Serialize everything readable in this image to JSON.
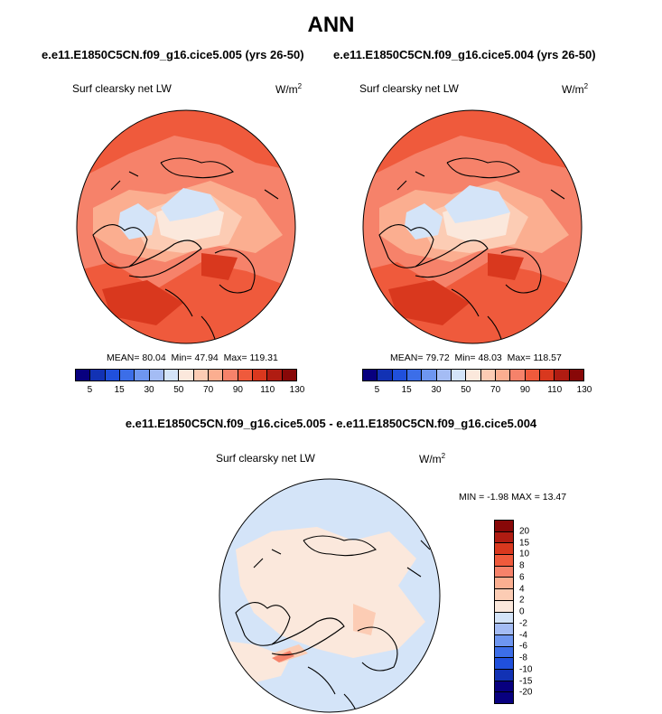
{
  "title": "ANN",
  "case_left": "e.e11.E1850C5CN.f09_g16.cice5.005 (yrs 26-50)",
  "case_right": "e.e11.E1850C5CN.f09_g16.cice5.004 (yrs 26-50)",
  "diff_title": "e.e11.E1850C5CN.f09_g16.cice5.005 - e.e11.E1850C5CN.f09_g16.cice5.004",
  "chart_data": [
    {
      "type": "heatmap",
      "projection": "north polar stereographic",
      "variable": "Surf clearsky net LW",
      "units_base": "W/m",
      "units_exp": "2",
      "case": "e.e11.E1850C5CN.f09_g16.cice5.005 (yrs 26-50)",
      "mean_text": "MEAN=  80.04",
      "min_text": "Min=  47.94",
      "max_text": "Max= 119.31",
      "mean": 80.04,
      "min": 47.94,
      "max": 119.31,
      "colorbar_ticks": [
        "5",
        "15",
        "30",
        "50",
        "70",
        "90",
        "110",
        "130"
      ],
      "contour_levels": [
        5,
        10,
        15,
        20,
        30,
        40,
        50,
        60,
        70,
        80,
        90,
        100,
        110,
        120,
        130
      ]
    },
    {
      "type": "heatmap",
      "projection": "north polar stereographic",
      "variable": "Surf clearsky net LW",
      "units_base": "W/m",
      "units_exp": "2",
      "case": "e.e11.E1850C5CN.f09_g16.cice5.004 (yrs 26-50)",
      "mean_text": "MEAN=  79.72",
      "min_text": "Min=  48.03",
      "max_text": "Max= 118.57",
      "mean": 79.72,
      "min": 48.03,
      "max": 118.57,
      "colorbar_ticks": [
        "5",
        "15",
        "30",
        "50",
        "70",
        "90",
        "110",
        "130"
      ],
      "contour_levels": [
        5,
        10,
        15,
        20,
        30,
        40,
        50,
        60,
        70,
        80,
        90,
        100,
        110,
        120,
        130
      ]
    },
    {
      "type": "heatmap",
      "projection": "north polar stereographic",
      "variable": "Surf clearsky net LW",
      "units_base": "W/m",
      "units_exp": "2",
      "case": "difference",
      "minmax_text": "MIN =  -1.98 MAX =  13.47",
      "min": -1.98,
      "max": 13.47,
      "colorbar_ticks": [
        "20",
        "15",
        "10",
        "8",
        "6",
        "4",
        "2",
        "0",
        "-2",
        "-4",
        "-6",
        "-8",
        "-10",
        "-15",
        "-20"
      ]
    }
  ],
  "colors": {
    "abs_scale": [
      "#08007f",
      "#1232b4",
      "#2050dc",
      "#3c6ee8",
      "#6e96f0",
      "#a4bcf4",
      "#d4e4f8",
      "#fbe8dc",
      "#fcccb4",
      "#fbae90",
      "#f6826a",
      "#ef5a3c",
      "#d9381e",
      "#b01c12",
      "#880808"
    ],
    "diff_scale": [
      "#880808",
      "#b01c12",
      "#d9381e",
      "#ef5a3c",
      "#f6826a",
      "#fbae90",
      "#fcccb4",
      "#fbe8dc",
      "#d4e4f8",
      "#a4bcf4",
      "#6e96f0",
      "#3c6ee8",
      "#2050dc",
      "#1232b4",
      "#08007f"
    ]
  }
}
